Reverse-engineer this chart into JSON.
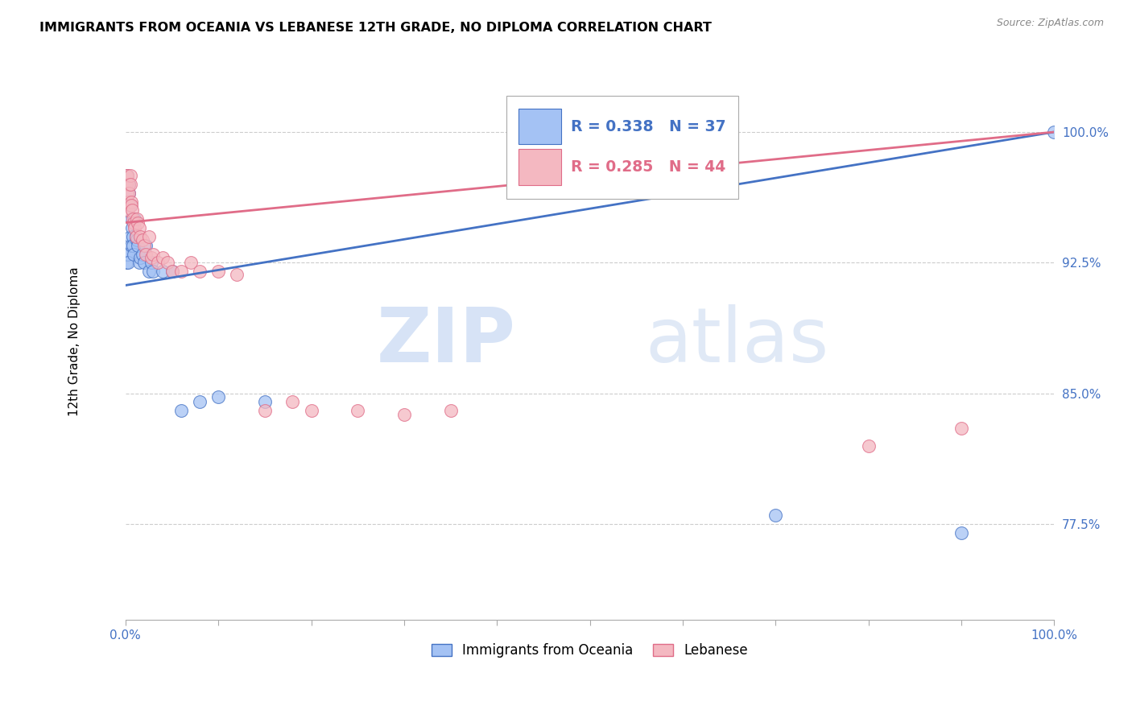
{
  "title": "IMMIGRANTS FROM OCEANIA VS LEBANESE 12TH GRADE, NO DIPLOMA CORRELATION CHART",
  "source": "Source: ZipAtlas.com",
  "ylabel": "12th Grade, No Diploma",
  "legend_label1": "Immigrants from Oceania",
  "legend_label2": "Lebanese",
  "r1": 0.338,
  "n1": 37,
  "r2": 0.285,
  "n2": 44,
  "ytick_labels": [
    "100.0%",
    "92.5%",
    "85.0%",
    "77.5%"
  ],
  "ytick_values": [
    1.0,
    0.925,
    0.85,
    0.775
  ],
  "xlim": [
    0.0,
    1.0
  ],
  "ylim": [
    0.72,
    1.04
  ],
  "color_blue": "#a4c2f4",
  "color_pink": "#f4b8c1",
  "color_blue_line": "#4472c4",
  "color_pink_line": "#e06c88",
  "watermark_zip": "ZIP",
  "watermark_atlas": "atlas",
  "oceania_x": [
    0.001,
    0.001,
    0.002,
    0.002,
    0.003,
    0.003,
    0.004,
    0.004,
    0.005,
    0.005,
    0.006,
    0.006,
    0.007,
    0.008,
    0.008,
    0.009,
    0.01,
    0.011,
    0.012,
    0.013,
    0.015,
    0.016,
    0.018,
    0.02,
    0.022,
    0.025,
    0.028,
    0.03,
    0.04,
    0.05,
    0.06,
    0.08,
    0.1,
    0.15,
    0.7,
    0.9,
    1.0
  ],
  "oceania_y": [
    0.925,
    0.93,
    0.96,
    0.975,
    0.93,
    0.925,
    0.965,
    0.97,
    0.94,
    0.958,
    0.95,
    0.935,
    0.945,
    0.94,
    0.935,
    0.93,
    0.95,
    0.94,
    0.938,
    0.935,
    0.925,
    0.928,
    0.93,
    0.925,
    0.935,
    0.92,
    0.925,
    0.92,
    0.92,
    0.92,
    0.84,
    0.845,
    0.848,
    0.845,
    0.78,
    0.77,
    1.0
  ],
  "lebanese_x": [
    0.001,
    0.001,
    0.002,
    0.002,
    0.003,
    0.003,
    0.004,
    0.004,
    0.005,
    0.005,
    0.006,
    0.006,
    0.007,
    0.008,
    0.009,
    0.01,
    0.011,
    0.012,
    0.013,
    0.015,
    0.016,
    0.018,
    0.02,
    0.022,
    0.025,
    0.028,
    0.03,
    0.035,
    0.04,
    0.045,
    0.05,
    0.06,
    0.07,
    0.08,
    0.1,
    0.12,
    0.15,
    0.18,
    0.2,
    0.25,
    0.3,
    0.35,
    0.8,
    0.9
  ],
  "lebanese_y": [
    0.97,
    0.975,
    0.965,
    0.975,
    0.96,
    0.955,
    0.97,
    0.965,
    0.975,
    0.97,
    0.96,
    0.958,
    0.955,
    0.95,
    0.948,
    0.945,
    0.94,
    0.95,
    0.948,
    0.945,
    0.94,
    0.938,
    0.935,
    0.93,
    0.94,
    0.928,
    0.93,
    0.925,
    0.928,
    0.925,
    0.92,
    0.92,
    0.925,
    0.92,
    0.92,
    0.918,
    0.84,
    0.845,
    0.84,
    0.84,
    0.838,
    0.84,
    0.82,
    0.83
  ]
}
